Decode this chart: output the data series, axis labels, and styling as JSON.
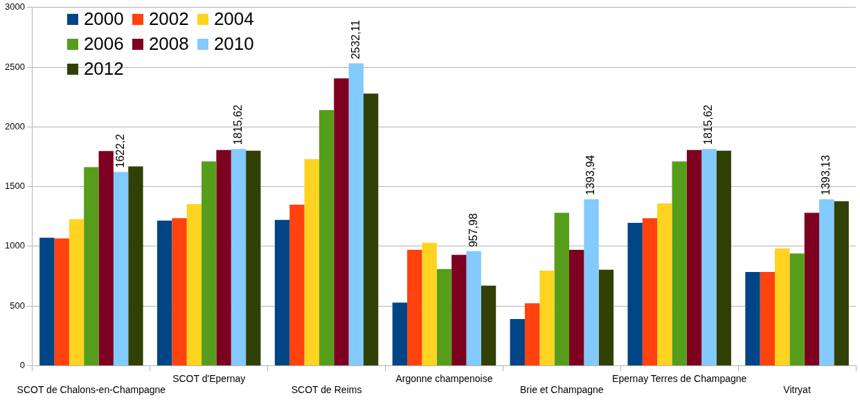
{
  "chart_data": {
    "type": "bar",
    "categories": [
      "SCOT de Chalons-en-Champagne",
      "SCOT d'Epernay",
      "SCOT de Reims",
      "Argonne champenoise",
      "Brie et Champagne",
      "Epernay Terres de Champagne",
      "Vitryat"
    ],
    "series": [
      {
        "name": "2000",
        "color": "#004586",
        "values": [
          1072,
          1215,
          1221,
          528,
          390,
          1197,
          785
        ]
      },
      {
        "name": "2002",
        "color": "#ff420e",
        "values": [
          1066,
          1235,
          1349,
          970,
          522,
          1235,
          785
        ]
      },
      {
        "name": "2004",
        "color": "#ffd320",
        "values": [
          1227,
          1353,
          1729,
          1030,
          797,
          1359,
          982
        ]
      },
      {
        "name": "2006",
        "color": "#579d1c",
        "values": [
          1663,
          1711,
          2141,
          809,
          1281,
          1711,
          940
        ]
      },
      {
        "name": "2008",
        "color": "#7e0021",
        "values": [
          1797,
          1807,
          2406,
          928,
          970,
          1807,
          1281
        ]
      },
      {
        "name": "2010",
        "color": "#83caff",
        "values": [
          1622.2,
          1815.62,
          2532.11,
          957.98,
          1393.94,
          1815.62,
          1393.13
        ],
        "value_labels": [
          "1622,2",
          "1815,62",
          "2532,11",
          "957,98",
          "1393,94",
          "1815,62",
          "1393,13"
        ]
      },
      {
        "name": "2012",
        "color": "#314004",
        "values": [
          1669,
          1801,
          2279,
          671,
          803,
          1801,
          1377
        ]
      }
    ],
    "ylim": [
      0,
      3000
    ],
    "yticks": [
      0,
      500,
      1000,
      1500,
      2000,
      2500,
      3000
    ],
    "grid": "y",
    "legend": "top left"
  }
}
